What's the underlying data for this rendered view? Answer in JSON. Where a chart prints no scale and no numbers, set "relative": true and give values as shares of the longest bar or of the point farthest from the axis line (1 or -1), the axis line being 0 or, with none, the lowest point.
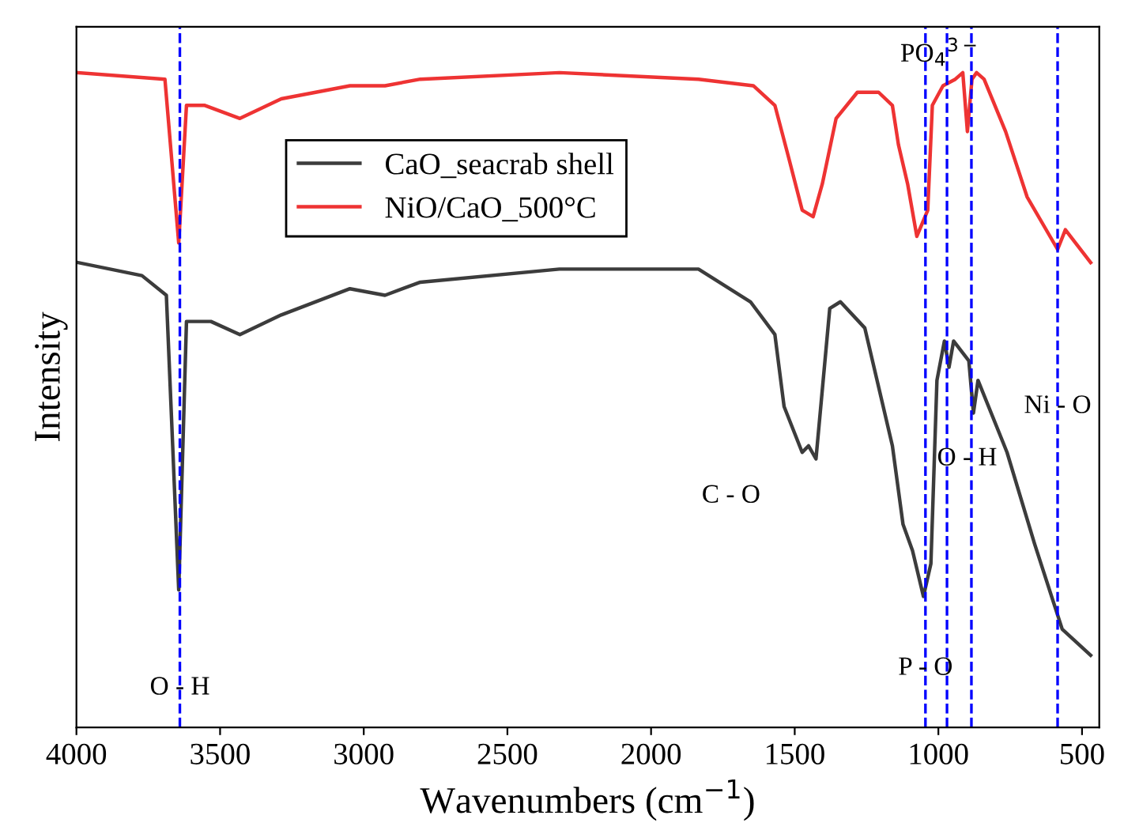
{
  "chart_data": {
    "type": "line",
    "relative": true,
    "xlabel": "Wavenumbers (cm$^{−1}$)",
    "ylabel": "Intensity",
    "xlim": [
      4000,
      440
    ],
    "xticks": [
      4000,
      3500,
      3000,
      2500,
      2000,
      1500,
      1000,
      500
    ],
    "legend": "top left",
    "line_style": "solid",
    "marker": "none",
    "grid": false,
    "tick_labels": "x",
    "series": [
      {
        "name": "CaO_seacrab shell",
        "color": "#3c3c3c",
        "x": [
          3995,
          3772,
          3687,
          3665,
          3644,
          3617,
          3532,
          3431,
          3287,
          3048,
          2926,
          2803,
          2319,
          1835,
          1654,
          1569,
          1537,
          1474,
          1452,
          1426,
          1378,
          1341,
          1256,
          1160,
          1123,
          1090,
          1052,
          1026,
          1005,
          979,
          963,
          947,
          894,
          878,
          862,
          761,
          665,
          569,
          470
        ],
        "values": [
          0.71,
          0.69,
          0.66,
          0.43,
          0.21,
          0.62,
          0.62,
          0.6,
          0.63,
          0.67,
          0.66,
          0.68,
          0.7,
          0.7,
          0.65,
          0.6,
          0.49,
          0.42,
          0.43,
          0.41,
          0.64,
          0.65,
          0.61,
          0.43,
          0.31,
          0.27,
          0.2,
          0.25,
          0.53,
          0.59,
          0.55,
          0.59,
          0.56,
          0.48,
          0.53,
          0.42,
          0.28,
          0.15,
          0.11
        ]
      },
      {
        "name": "NiO/CaO_500°C",
        "color": "#ee3333",
        "x": [
          3995,
          3692,
          3644,
          3617,
          3553,
          3431,
          3287,
          3048,
          2926,
          2803,
          2319,
          1835,
          1644,
          1569,
          1521,
          1474,
          1436,
          1404,
          1356,
          1282,
          1208,
          1160,
          1139,
          1107,
          1075,
          1037,
          1021,
          984,
          941,
          915,
          899,
          883,
          867,
          841,
          766,
          691,
          585,
          558,
          470
        ],
        "values": [
          1.0,
          0.99,
          0.74,
          0.95,
          0.95,
          0.93,
          0.96,
          0.98,
          0.98,
          0.99,
          1.0,
          0.99,
          0.98,
          0.95,
          0.87,
          0.79,
          0.78,
          0.83,
          0.93,
          0.97,
          0.97,
          0.95,
          0.89,
          0.83,
          0.75,
          0.79,
          0.95,
          0.98,
          0.99,
          1.0,
          0.91,
          0.99,
          1.0,
          0.99,
          0.91,
          0.81,
          0.73,
          0.76,
          0.71
        ]
      }
    ],
    "ref_lines": [
      {
        "axis": "x",
        "value": 3640,
        "color": "#0000ff",
        "line_style": "dashed"
      },
      {
        "axis": "x",
        "value": 1045,
        "color": "#0000ff",
        "line_style": "dashed"
      },
      {
        "axis": "x",
        "value": 970,
        "color": "#0000ff",
        "line_style": "dashed"
      },
      {
        "axis": "x",
        "value": 885,
        "color": "#0000ff",
        "line_style": "dashed"
      },
      {
        "axis": "x",
        "value": 585,
        "color": "#0000ff",
        "line_style": "dashed"
      }
    ],
    "annotations": [
      {
        "text": "O - H",
        "x": 3640,
        "y": 0.06
      },
      "C - O",
      {
        "text": "P - O",
        "x": 1045,
        "y": 0.09
      },
      {
        "text": "O - H",
        "x": 900,
        "y": 0.41
      },
      {
        "text": "Ni - O",
        "x": 585,
        "y": 0.49
      },
      {
        "text": "PO$_{4}$$^{3−}$",
        "x": 990,
        "y": 1.03
      }
    ]
  }
}
